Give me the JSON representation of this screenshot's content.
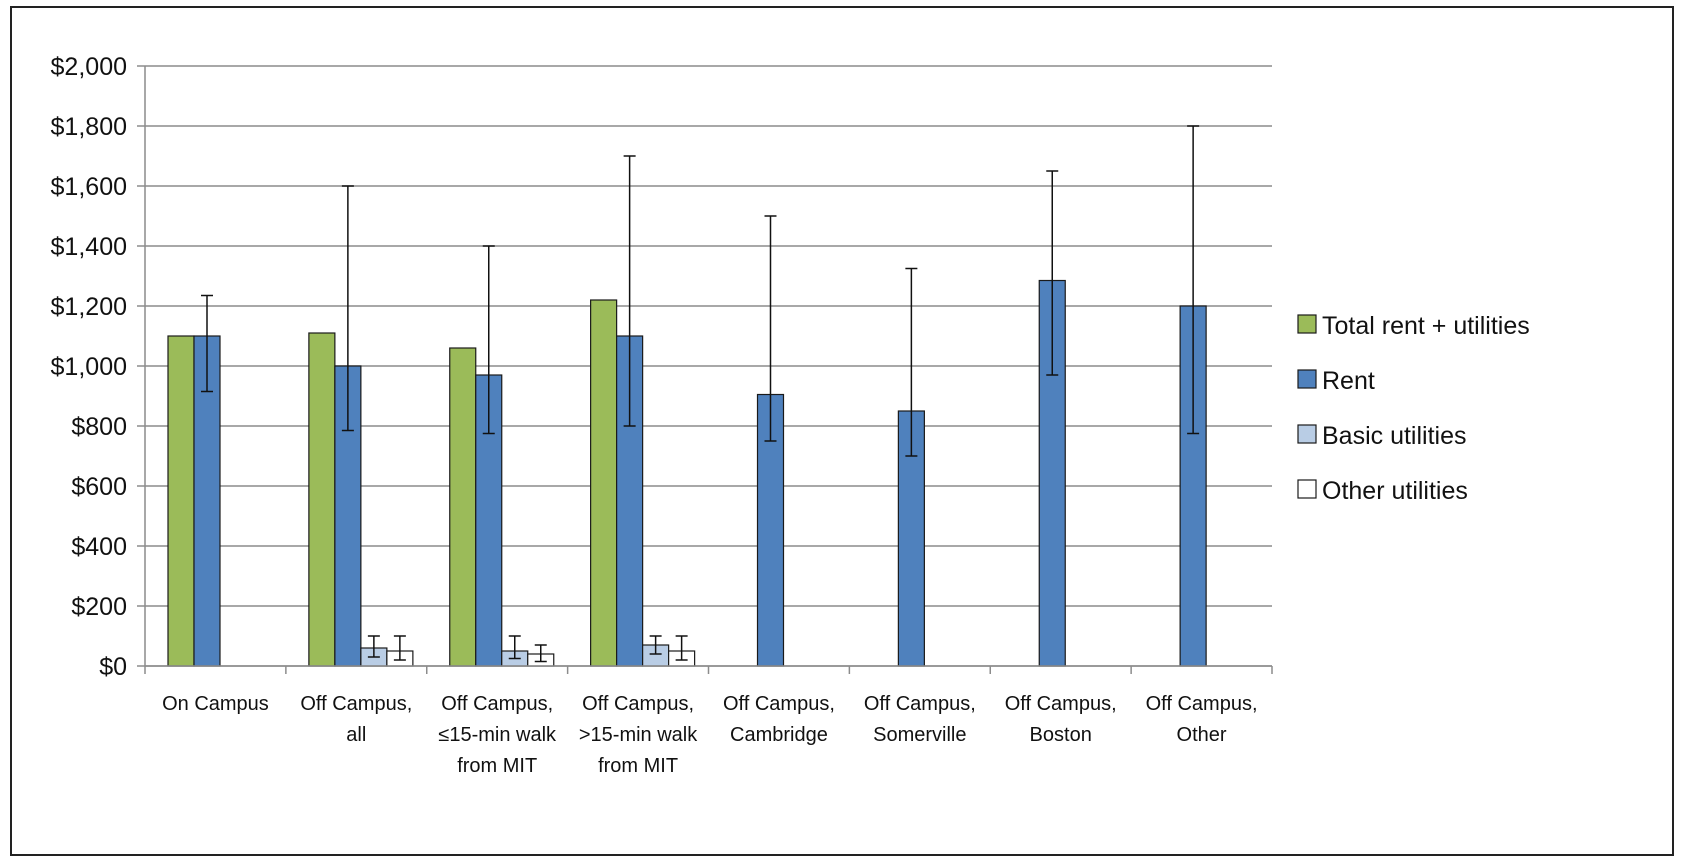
{
  "chart_data": {
    "type": "bar",
    "title": "",
    "xlabel": "",
    "ylabel": "",
    "ylim": [
      0,
      2000
    ],
    "yticks": [
      "$0",
      "$200",
      "$400",
      "$600",
      "$800",
      "$1,000",
      "$1,200",
      "$1,400",
      "$1,600",
      "$1,800",
      "$2,000"
    ],
    "grid": true,
    "legend_position": "right",
    "categories": [
      [
        "On Campus"
      ],
      [
        "Off Campus,",
        "all"
      ],
      [
        "Off Campus,",
        "≤15-min walk",
        "from MIT"
      ],
      [
        "Off Campus,",
        ">15-min walk",
        "from MIT"
      ],
      [
        "Off Campus,",
        "Cambridge"
      ],
      [
        "Off Campus,",
        "Somerville"
      ],
      [
        "Off Campus,",
        "Boston"
      ],
      [
        "Off Campus,",
        "Other"
      ]
    ],
    "series": [
      {
        "name": "Total rent + utilities",
        "color": "#9bbb59",
        "values": [
          1100,
          1110,
          1060,
          1220,
          null,
          null,
          null,
          null
        ],
        "error_low": [
          null,
          null,
          null,
          null,
          null,
          null,
          null,
          null
        ],
        "error_high": [
          null,
          null,
          null,
          null,
          null,
          null,
          null,
          null
        ]
      },
      {
        "name": "Rent",
        "color": "#4f81bd",
        "values": [
          1100,
          1000,
          970,
          1100,
          905,
          850,
          1285,
          1200
        ],
        "error_low": [
          915,
          785,
          775,
          800,
          750,
          700,
          970,
          775
        ],
        "error_high": [
          1235,
          1600,
          1400,
          1700,
          1500,
          1325,
          1650,
          1800
        ]
      },
      {
        "name": "Basic utilities",
        "color": "#b9cde5",
        "values": [
          null,
          60,
          50,
          70,
          null,
          null,
          null,
          null
        ],
        "error_low": [
          null,
          30,
          25,
          40,
          null,
          null,
          null,
          null
        ],
        "error_high": [
          null,
          100,
          100,
          100,
          null,
          null,
          null,
          null
        ]
      },
      {
        "name": "Other utilities",
        "color": "#ffffff",
        "values": [
          null,
          50,
          40,
          50,
          null,
          null,
          null,
          null
        ],
        "error_low": [
          null,
          20,
          15,
          20,
          null,
          null,
          null,
          null
        ],
        "error_high": [
          null,
          100,
          70,
          100,
          null,
          null,
          null,
          null
        ]
      }
    ]
  }
}
